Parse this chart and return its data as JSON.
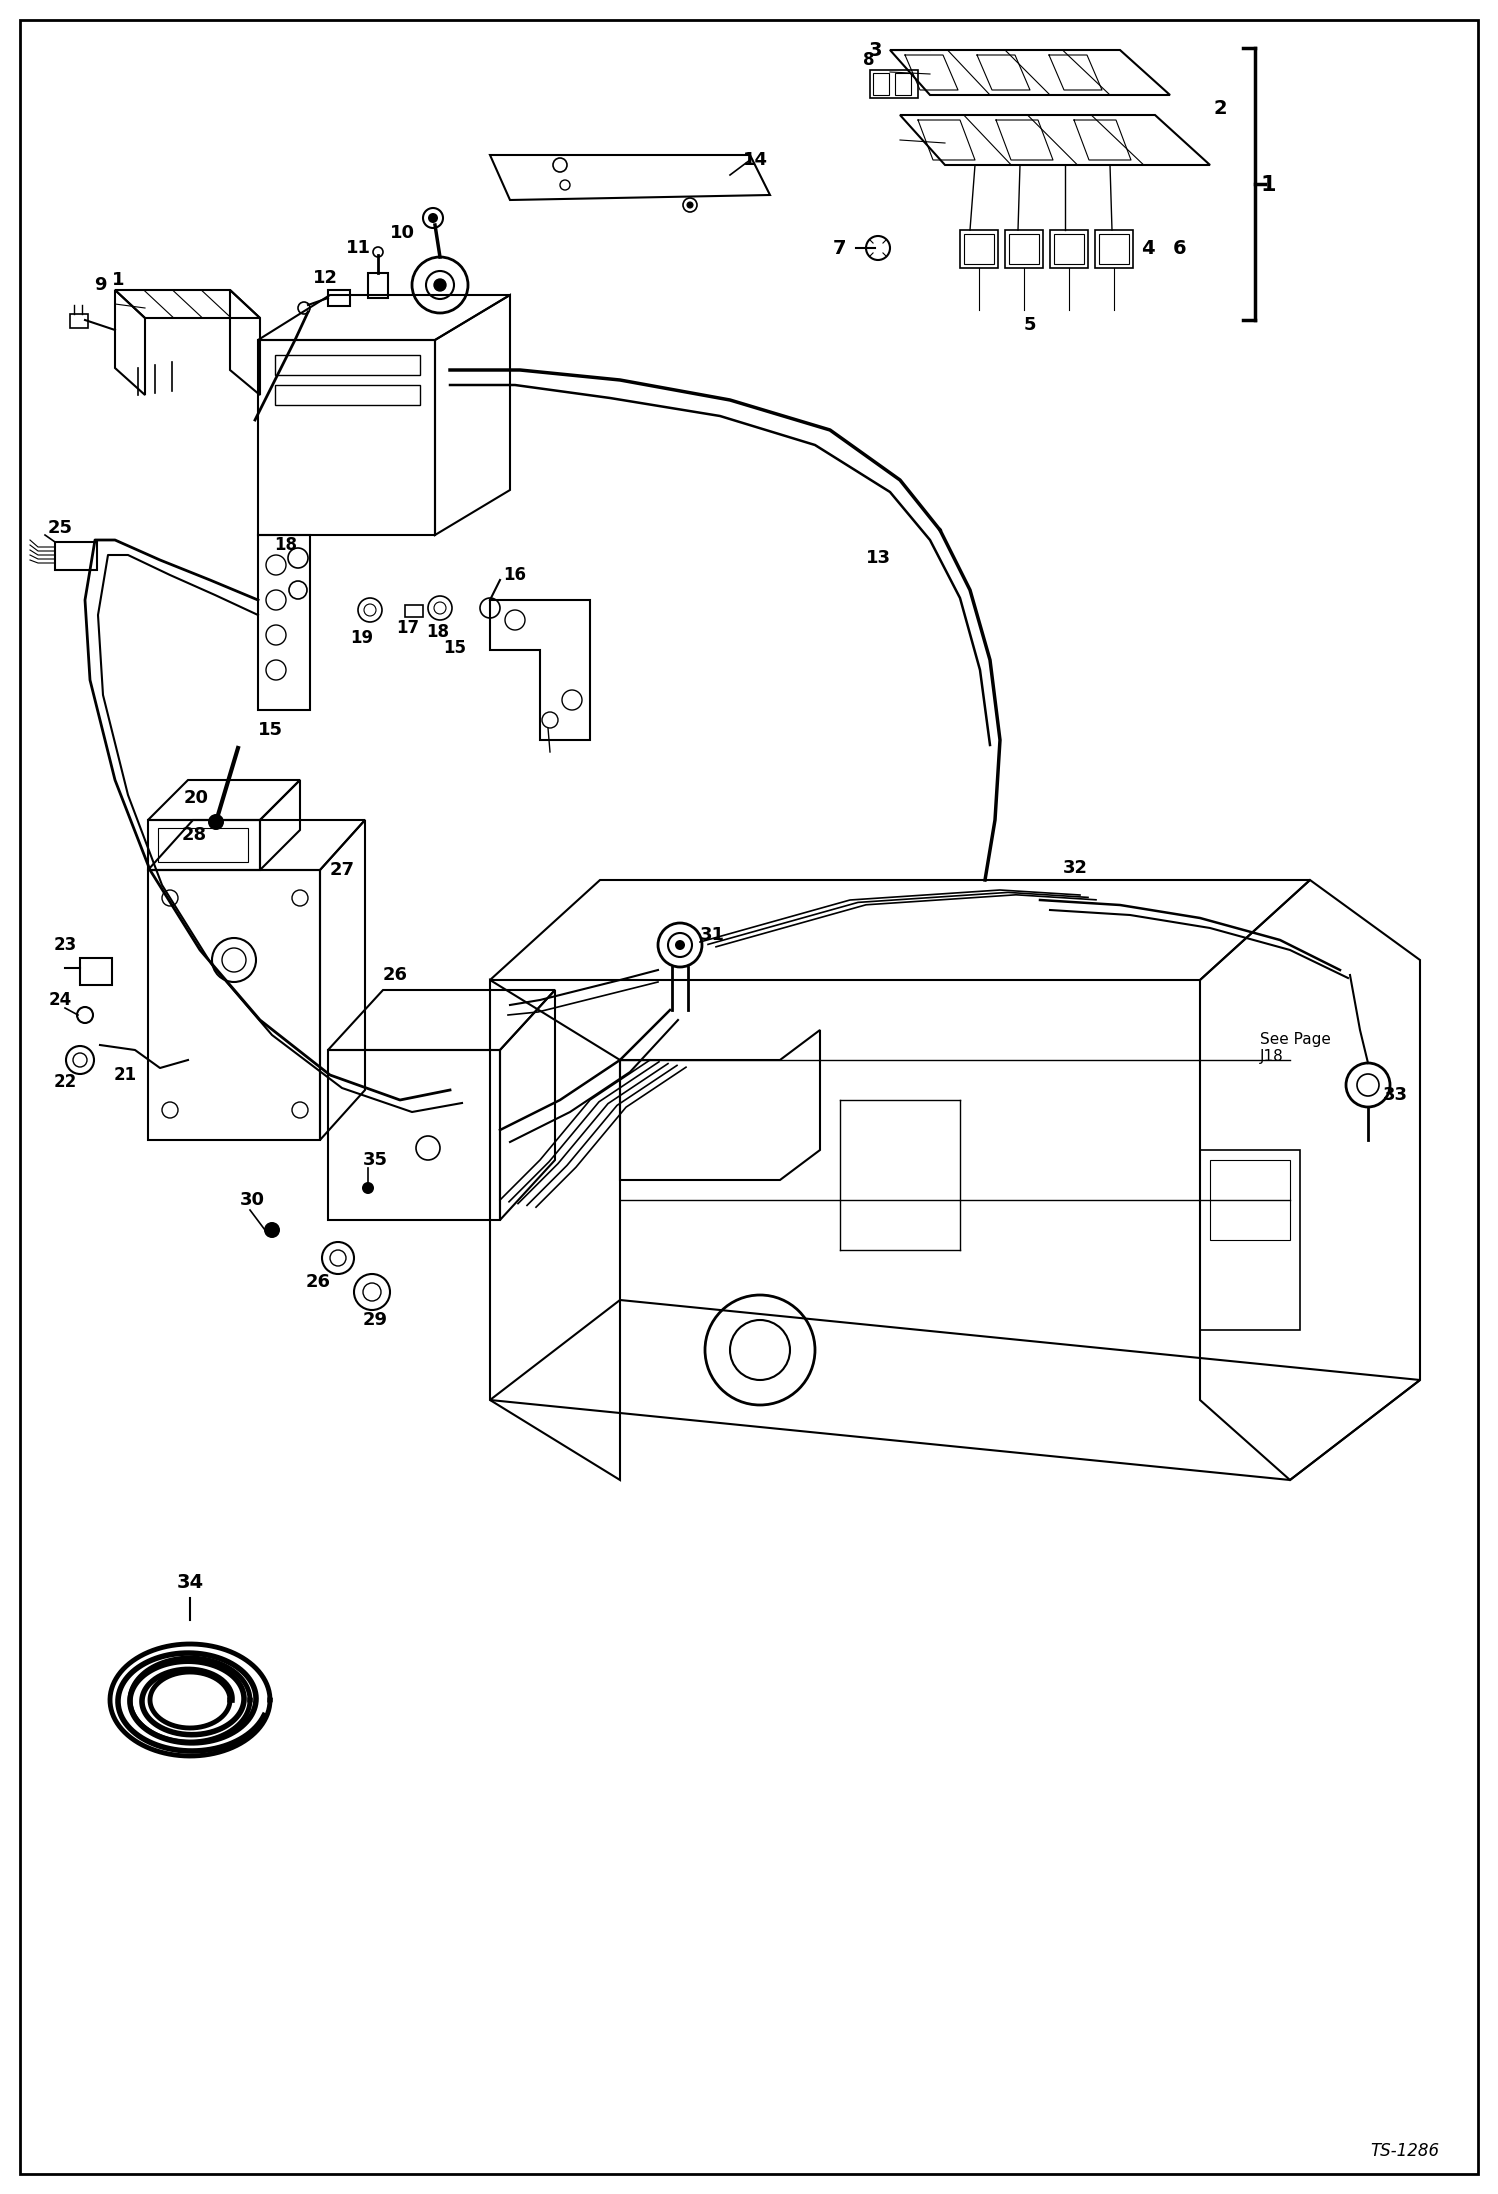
{
  "fig_width": 14.98,
  "fig_height": 21.94,
  "dpi": 100,
  "bg_color": "#ffffff",
  "lc": "#000000",
  "diagram_code": "TS-1286"
}
